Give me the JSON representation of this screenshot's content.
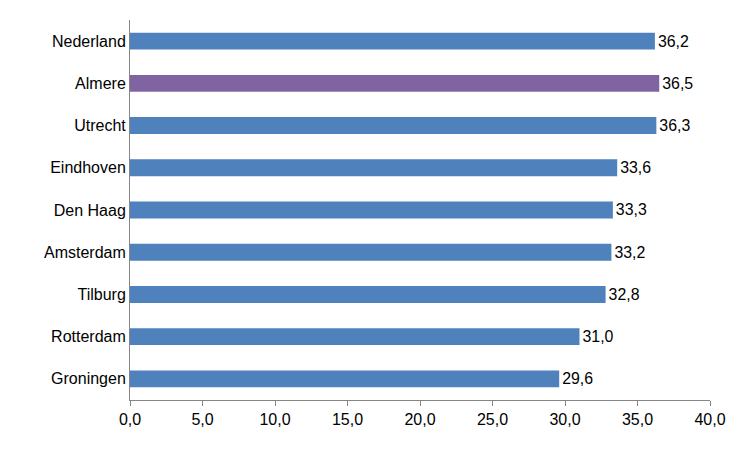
{
  "chart_data": {
    "type": "bar",
    "orientation": "horizontal",
    "categories": [
      "Nederland",
      "Almere",
      "Utrecht",
      "Eindhoven",
      "Den Haag",
      "Amsterdam",
      "Tilburg",
      "Rotterdam",
      "Groningen"
    ],
    "values": [
      36.2,
      36.5,
      36.3,
      33.6,
      33.3,
      33.2,
      32.8,
      31.0,
      29.6
    ],
    "value_labels": [
      "36,2",
      "36,5",
      "36,3",
      "33,6",
      "33,3",
      "33,2",
      "32,8",
      "31,0",
      "29,6"
    ],
    "colors": [
      "#4f81bd",
      "#8064a2",
      "#4f81bd",
      "#4f81bd",
      "#4f81bd",
      "#4f81bd",
      "#4f81bd",
      "#4f81bd",
      "#4f81bd"
    ],
    "xlim": [
      0,
      40
    ],
    "xticks": [
      {
        "value": 0,
        "label": "0,0"
      },
      {
        "value": 5,
        "label": "5,0"
      },
      {
        "value": 10,
        "label": "10,0"
      },
      {
        "value": 15,
        "label": "15,0"
      },
      {
        "value": 20,
        "label": "20,0"
      },
      {
        "value": 25,
        "label": "25,0"
      },
      {
        "value": 30,
        "label": "30,0"
      },
      {
        "value": 35,
        "label": "35,0"
      },
      {
        "value": 40,
        "label": "40,0"
      }
    ],
    "grid": false,
    "data_labels": true
  }
}
